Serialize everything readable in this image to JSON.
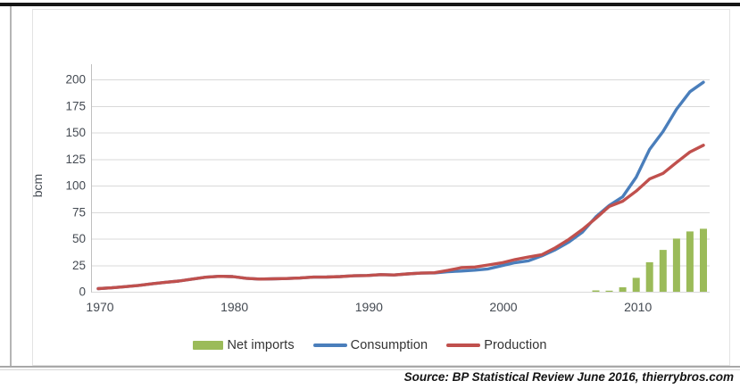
{
  "page": {
    "source_note": "Source: BP Statistical Review June 2016, thierrybros.com"
  },
  "chart_data": {
    "type": "bar+line combo",
    "title": "",
    "xlabel": "",
    "ylabel": "bcm",
    "ylim": [
      0,
      200
    ],
    "y_ticks": [
      0,
      25,
      50,
      75,
      100,
      125,
      150,
      175,
      200
    ],
    "x_ticks": [
      1970,
      1980,
      1990,
      2000,
      2010
    ],
    "grid": "horizontal-only",
    "legend_position": "bottom",
    "colors": {
      "net_imports": "#9BBB59",
      "consumption": "#4A7EBB",
      "production": "#C0504D",
      "gridline": "#D9D9D9",
      "axis_line": "#BFBFBF",
      "tick_text": "#444A52"
    },
    "x": [
      1970,
      1971,
      1972,
      1973,
      1974,
      1975,
      1976,
      1977,
      1978,
      1979,
      1980,
      1981,
      1982,
      1983,
      1984,
      1985,
      1986,
      1987,
      1988,
      1989,
      1990,
      1991,
      1992,
      1993,
      1994,
      1995,
      1996,
      1997,
      1998,
      1999,
      2000,
      2001,
      2002,
      2003,
      2004,
      2005,
      2006,
      2007,
      2008,
      2009,
      2010,
      2011,
      2012,
      2013,
      2014,
      2015
    ],
    "series": [
      {
        "name": "Net imports",
        "type": "bar",
        "color": "#9BBB59",
        "x": [
          2007,
          2008,
          2009,
          2010,
          2011,
          2012,
          2013,
          2014,
          2015
        ],
        "values": [
          1.3,
          1.0,
          4.2,
          13.1,
          27.8,
          39.4,
          50.1,
          56.8,
          59.3
        ]
      },
      {
        "name": "Consumption",
        "type": "line",
        "color": "#4A7EBB",
        "values": [
          2.9,
          3.7,
          4.8,
          6.0,
          7.5,
          8.9,
          10.1,
          11.9,
          13.7,
          14.5,
          14.3,
          12.7,
          11.9,
          12.2,
          12.4,
          12.9,
          13.8,
          13.9,
          14.3,
          15.0,
          15.3,
          16.1,
          15.8,
          16.8,
          17.6,
          17.7,
          18.9,
          19.5,
          20.3,
          21.5,
          24.5,
          27.4,
          29.2,
          33.9,
          39.7,
          46.8,
          56.1,
          70.5,
          81.3,
          89.5,
          107.9,
          134.0,
          150.9,
          171.9,
          188.4,
          197.3
        ]
      },
      {
        "name": "Production",
        "type": "line",
        "color": "#C0504D",
        "values": [
          2.9,
          3.7,
          4.8,
          6.0,
          7.5,
          8.9,
          10.1,
          11.9,
          13.7,
          14.5,
          14.3,
          12.7,
          11.9,
          12.2,
          12.4,
          12.9,
          13.8,
          13.9,
          14.3,
          15.0,
          15.3,
          16.1,
          15.8,
          16.8,
          17.6,
          17.9,
          20.1,
          22.7,
          23.3,
          25.2,
          27.2,
          30.3,
          32.7,
          35.0,
          41.5,
          49.3,
          58.6,
          69.2,
          80.3,
          85.3,
          94.8,
          106.2,
          111.5,
          121.8,
          131.6,
          138.0
        ]
      }
    ]
  }
}
